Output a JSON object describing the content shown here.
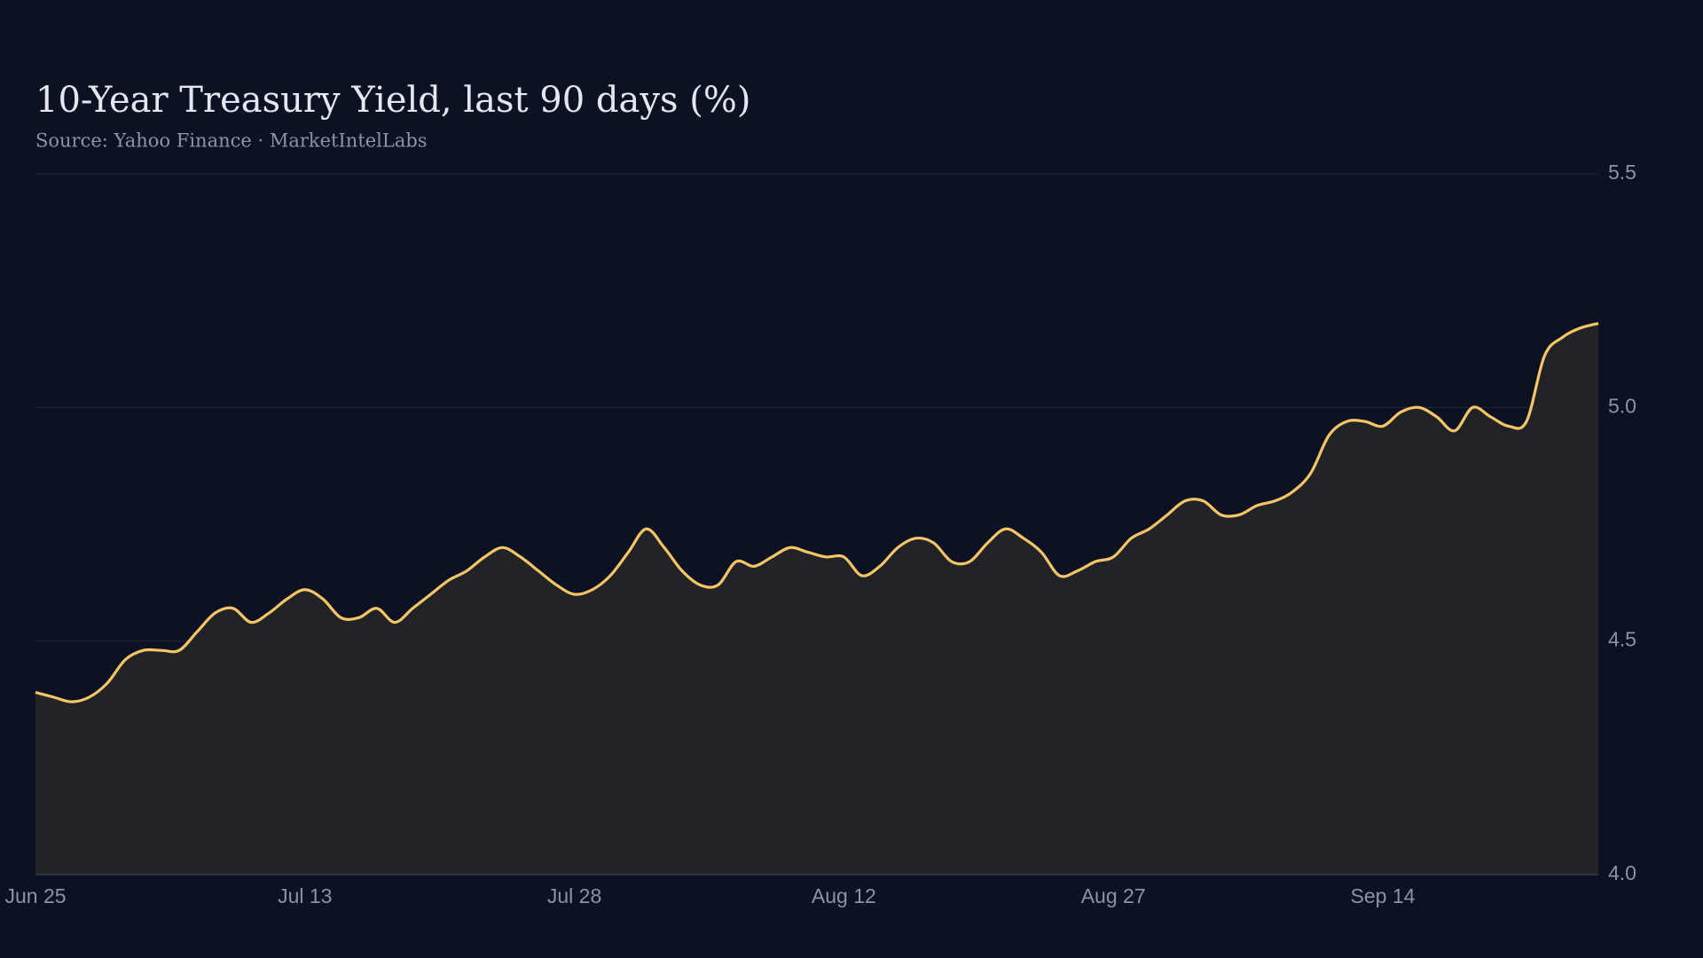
{
  "chart_data": {
    "type": "area",
    "title": "10-Year Treasury Yield, last 90 days (%)",
    "subtitle": "Source: Yahoo Finance · MarketIntelLabs",
    "categories": [
      "Jun 25",
      null,
      null,
      null,
      null,
      null,
      null,
      null,
      null,
      null,
      null,
      null,
      null,
      null,
      null,
      "Jul 13",
      null,
      null,
      null,
      null,
      null,
      null,
      null,
      null,
      null,
      null,
      null,
      null,
      null,
      null,
      "Jul 28",
      null,
      null,
      null,
      null,
      null,
      null,
      null,
      null,
      null,
      null,
      null,
      null,
      null,
      null,
      "Aug 12",
      null,
      null,
      null,
      null,
      null,
      null,
      null,
      null,
      null,
      null,
      null,
      null,
      null,
      null,
      "Aug 27",
      null,
      null,
      null,
      null,
      null,
      null,
      null,
      null,
      null,
      null,
      null,
      null,
      null,
      null,
      "Sep 14",
      null,
      null,
      null,
      null,
      null,
      null,
      null,
      null,
      null,
      null,
      null,
      null
    ],
    "values": [
      4.39,
      4.38,
      4.37,
      4.38,
      4.41,
      4.46,
      4.48,
      4.48,
      4.48,
      4.52,
      4.56,
      4.57,
      4.54,
      4.56,
      4.59,
      4.61,
      4.59,
      4.55,
      4.55,
      4.57,
      4.54,
      4.57,
      4.6,
      4.63,
      4.65,
      4.68,
      4.7,
      4.68,
      4.65,
      4.62,
      4.6,
      4.61,
      4.64,
      4.69,
      4.74,
      4.7,
      4.65,
      4.62,
      4.62,
      4.67,
      4.66,
      4.68,
      4.7,
      4.69,
      4.68,
      4.68,
      4.64,
      4.66,
      4.7,
      4.72,
      4.71,
      4.67,
      4.67,
      4.71,
      4.74,
      4.72,
      4.69,
      4.64,
      4.65,
      4.67,
      4.68,
      4.72,
      4.74,
      4.77,
      4.8,
      4.8,
      4.77,
      4.77,
      4.79,
      4.8,
      4.82,
      4.86,
      4.94,
      4.97,
      4.97,
      4.96,
      4.99,
      5.0,
      4.98,
      4.95,
      5.0,
      4.98,
      4.96,
      4.97,
      5.11,
      5.15,
      5.17,
      5.18
    ],
    "color": "#f5c566",
    "fill_color": "#222326",
    "ylim": [
      4,
      5.5
    ],
    "yticks": [
      {
        "value": 4,
        "label": "4.0"
      },
      4.5,
      {
        "value": 5,
        "label": "5.0"
      },
      5.5
    ],
    "grid": true
  }
}
